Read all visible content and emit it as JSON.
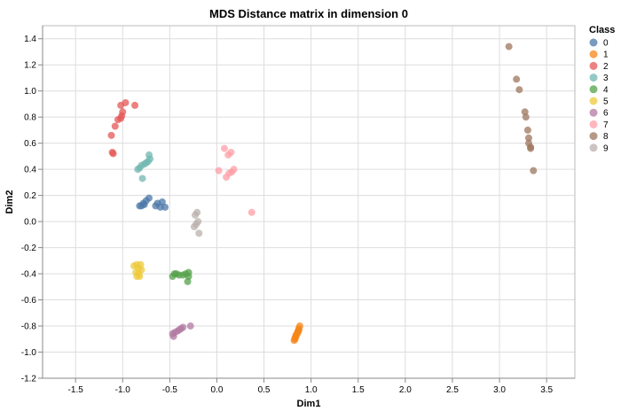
{
  "chart_data": {
    "type": "scatter",
    "title": "MDS Distance matrix in dimension 0",
    "xlabel": "Dim1",
    "ylabel": "Dim2",
    "xlim": [
      -1.85,
      3.8
    ],
    "ylim": [
      -1.2,
      1.5
    ],
    "x_ticks": [
      "-1.5",
      "-1.0",
      "-0.5",
      "0.0",
      "0.5",
      "1.0",
      "1.5",
      "2.0",
      "2.5",
      "3.0",
      "3.5"
    ],
    "y_ticks": [
      "-1.2",
      "-1.0",
      "-0.8",
      "-0.6",
      "-0.4",
      "-0.2",
      "0.0",
      "0.2",
      "0.4",
      "0.6",
      "0.8",
      "1.0",
      "1.2",
      "1.4"
    ],
    "grid": true,
    "legend": {
      "title": "Class",
      "position": "right"
    },
    "series": [
      {
        "name": "0",
        "color": "#4c78a8",
        "points": [
          [
            -0.72,
            0.18
          ],
          [
            -0.75,
            0.16
          ],
          [
            -0.78,
            0.14
          ],
          [
            -0.8,
            0.12
          ],
          [
            -0.82,
            0.12
          ],
          [
            -0.77,
            0.13
          ],
          [
            -0.63,
            0.14
          ],
          [
            -0.58,
            0.15
          ],
          [
            -0.6,
            0.11
          ],
          [
            -0.65,
            0.12
          ],
          [
            -0.55,
            0.11
          ]
        ]
      },
      {
        "name": "1",
        "color": "#f58518",
        "points": [
          [
            0.88,
            -0.8
          ],
          [
            0.87,
            -0.82
          ],
          [
            0.86,
            -0.84
          ],
          [
            0.86,
            -0.85
          ],
          [
            0.85,
            -0.86
          ],
          [
            0.84,
            -0.87
          ],
          [
            0.84,
            -0.88
          ],
          [
            0.83,
            -0.89
          ],
          [
            0.83,
            -0.9
          ],
          [
            0.82,
            -0.91
          ],
          [
            0.87,
            -0.83
          ]
        ]
      },
      {
        "name": "2",
        "color": "#e45756",
        "points": [
          [
            -0.97,
            0.91
          ],
          [
            -0.87,
            0.89
          ],
          [
            -1.02,
            0.89
          ],
          [
            -1.0,
            0.84
          ],
          [
            -1.01,
            0.81
          ],
          [
            -1.02,
            0.79
          ],
          [
            -1.05,
            0.78
          ],
          [
            -1.08,
            0.73
          ],
          [
            -1.12,
            0.66
          ],
          [
            -1.11,
            0.53
          ],
          [
            -1.1,
            0.52
          ]
        ]
      },
      {
        "name": "3",
        "color": "#72b7b2",
        "points": [
          [
            -0.72,
            0.51
          ],
          [
            -0.71,
            0.48
          ],
          [
            -0.73,
            0.46
          ],
          [
            -0.75,
            0.45
          ],
          [
            -0.77,
            0.44
          ],
          [
            -0.8,
            0.43
          ],
          [
            -0.82,
            0.41
          ],
          [
            -0.84,
            0.4
          ],
          [
            -0.79,
            0.33
          ]
        ]
      },
      {
        "name": "4",
        "color": "#54a24b",
        "points": [
          [
            -0.3,
            -0.39
          ],
          [
            -0.33,
            -0.4
          ],
          [
            -0.36,
            -0.41
          ],
          [
            -0.4,
            -0.41
          ],
          [
            -0.43,
            -0.4
          ],
          [
            -0.45,
            -0.4
          ],
          [
            -0.47,
            -0.42
          ],
          [
            -0.3,
            -0.42
          ],
          [
            -0.31,
            -0.46
          ]
        ]
      },
      {
        "name": "5",
        "color": "#eeca3b",
        "points": [
          [
            -0.88,
            -0.34
          ],
          [
            -0.85,
            -0.33
          ],
          [
            -0.81,
            -0.33
          ],
          [
            -0.83,
            -0.36
          ],
          [
            -0.8,
            -0.37
          ],
          [
            -0.86,
            -0.39
          ],
          [
            -0.83,
            -0.4
          ],
          [
            -0.85,
            -0.42
          ],
          [
            -0.82,
            -0.42
          ]
        ]
      },
      {
        "name": "6",
        "color": "#b279a2",
        "points": [
          [
            -0.28,
            -0.8
          ],
          [
            -0.36,
            -0.81
          ],
          [
            -0.38,
            -0.82
          ],
          [
            -0.4,
            -0.83
          ],
          [
            -0.42,
            -0.84
          ],
          [
            -0.45,
            -0.85
          ],
          [
            -0.47,
            -0.86
          ],
          [
            -0.46,
            -0.88
          ]
        ]
      },
      {
        "name": "7",
        "color": "#ff9da6",
        "points": [
          [
            0.08,
            0.56
          ],
          [
            0.15,
            0.53
          ],
          [
            0.12,
            0.51
          ],
          [
            0.18,
            0.4
          ],
          [
            0.16,
            0.38
          ],
          [
            0.13,
            0.37
          ],
          [
            0.1,
            0.34
          ],
          [
            0.02,
            0.39
          ],
          [
            0.37,
            0.07
          ]
        ]
      },
      {
        "name": "8",
        "color": "#9d755d",
        "points": [
          [
            3.1,
            1.34
          ],
          [
            3.18,
            1.09
          ],
          [
            3.21,
            1.01
          ],
          [
            3.27,
            0.84
          ],
          [
            3.28,
            0.8
          ],
          [
            3.3,
            0.7
          ],
          [
            3.31,
            0.64
          ],
          [
            3.31,
            0.6
          ],
          [
            3.33,
            0.57
          ],
          [
            3.33,
            0.56
          ],
          [
            3.36,
            0.39
          ]
        ]
      },
      {
        "name": "9",
        "color": "#bab0ac",
        "points": [
          [
            -0.21,
            0.07
          ],
          [
            -0.23,
            0.05
          ],
          [
            -0.2,
            0.0
          ],
          [
            -0.22,
            -0.02
          ],
          [
            -0.24,
            -0.04
          ],
          [
            -0.19,
            -0.09
          ]
        ]
      }
    ]
  }
}
